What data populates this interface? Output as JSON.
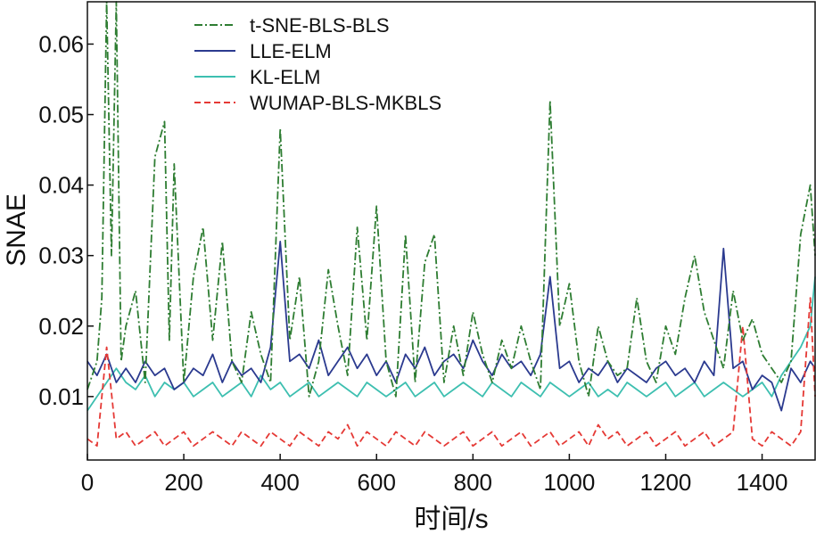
{
  "chart_data": {
    "type": "line",
    "xlabel": "时间/s",
    "ylabel": "SNAE",
    "xlim": [
      0,
      1510
    ],
    "ylim": [
      0.001,
      0.066
    ],
    "xticks": [
      0,
      200,
      400,
      600,
      800,
      1000,
      1200,
      1400
    ],
    "yticks": [
      0.01,
      0.02,
      0.03,
      0.04,
      0.05,
      0.06
    ],
    "ytick_labels": [
      "0.01",
      "0.02",
      "0.03",
      "0.04",
      "0.05",
      "0.06"
    ],
    "grid": false,
    "legend_position": "top-left",
    "series": [
      {
        "name": "t-SNE-BLS-BLS",
        "color": "#2e7d32",
        "dash": "dashdot",
        "x": [
          0,
          20,
          30,
          40,
          50,
          60,
          70,
          80,
          100,
          120,
          140,
          160,
          170,
          180,
          200,
          220,
          240,
          260,
          280,
          300,
          320,
          340,
          360,
          380,
          400,
          420,
          440,
          460,
          480,
          500,
          520,
          540,
          560,
          580,
          600,
          620,
          640,
          660,
          680,
          700,
          720,
          740,
          760,
          780,
          800,
          820,
          840,
          860,
          880,
          900,
          920,
          940,
          960,
          980,
          1000,
          1020,
          1040,
          1060,
          1080,
          1100,
          1120,
          1140,
          1160,
          1180,
          1200,
          1220,
          1240,
          1260,
          1280,
          1300,
          1320,
          1340,
          1360,
          1380,
          1400,
          1420,
          1440,
          1460,
          1480,
          1500,
          1510
        ],
        "y": [
          0.011,
          0.015,
          0.024,
          0.066,
          0.03,
          0.066,
          0.015,
          0.02,
          0.025,
          0.012,
          0.044,
          0.049,
          0.018,
          0.043,
          0.012,
          0.027,
          0.034,
          0.018,
          0.032,
          0.015,
          0.012,
          0.022,
          0.016,
          0.012,
          0.048,
          0.018,
          0.027,
          0.01,
          0.015,
          0.028,
          0.02,
          0.013,
          0.034,
          0.018,
          0.037,
          0.015,
          0.01,
          0.033,
          0.012,
          0.029,
          0.033,
          0.012,
          0.02,
          0.013,
          0.022,
          0.016,
          0.012,
          0.018,
          0.014,
          0.02,
          0.015,
          0.011,
          0.052,
          0.02,
          0.026,
          0.015,
          0.01,
          0.02,
          0.015,
          0.013,
          0.014,
          0.024,
          0.015,
          0.012,
          0.02,
          0.016,
          0.024,
          0.03,
          0.022,
          0.018,
          0.014,
          0.025,
          0.018,
          0.021,
          0.016,
          0.014,
          0.012,
          0.015,
          0.033,
          0.04,
          0.03
        ]
      },
      {
        "name": "LLE-ELM",
        "color": "#2b3a8f",
        "dash": "solid",
        "x": [
          0,
          20,
          40,
          60,
          80,
          100,
          120,
          140,
          160,
          180,
          200,
          220,
          240,
          260,
          280,
          300,
          320,
          340,
          360,
          380,
          400,
          420,
          440,
          460,
          480,
          500,
          520,
          540,
          560,
          580,
          600,
          620,
          640,
          660,
          680,
          700,
          720,
          740,
          760,
          780,
          800,
          820,
          840,
          860,
          880,
          900,
          920,
          940,
          960,
          980,
          1000,
          1020,
          1040,
          1060,
          1080,
          1100,
          1120,
          1140,
          1160,
          1180,
          1200,
          1220,
          1240,
          1260,
          1280,
          1300,
          1320,
          1340,
          1360,
          1380,
          1400,
          1420,
          1440,
          1460,
          1480,
          1500,
          1510
        ],
        "y": [
          0.015,
          0.013,
          0.016,
          0.012,
          0.014,
          0.012,
          0.015,
          0.013,
          0.014,
          0.011,
          0.012,
          0.014,
          0.013,
          0.016,
          0.012,
          0.015,
          0.013,
          0.014,
          0.012,
          0.017,
          0.032,
          0.015,
          0.016,
          0.014,
          0.018,
          0.013,
          0.015,
          0.017,
          0.014,
          0.016,
          0.013,
          0.015,
          0.012,
          0.016,
          0.014,
          0.017,
          0.013,
          0.015,
          0.016,
          0.014,
          0.018,
          0.015,
          0.013,
          0.016,
          0.014,
          0.015,
          0.013,
          0.016,
          0.027,
          0.014,
          0.015,
          0.012,
          0.014,
          0.013,
          0.015,
          0.012,
          0.014,
          0.013,
          0.012,
          0.014,
          0.015,
          0.013,
          0.014,
          0.012,
          0.015,
          0.013,
          0.031,
          0.014,
          0.015,
          0.011,
          0.013,
          0.012,
          0.008,
          0.014,
          0.012,
          0.015,
          0.014
        ]
      },
      {
        "name": "KL-ELM",
        "color": "#3dbfb0",
        "dash": "solid",
        "x": [
          0,
          20,
          40,
          60,
          80,
          100,
          120,
          140,
          160,
          180,
          200,
          220,
          240,
          260,
          280,
          300,
          320,
          340,
          360,
          380,
          400,
          420,
          440,
          460,
          480,
          500,
          520,
          540,
          560,
          580,
          600,
          620,
          640,
          660,
          680,
          700,
          720,
          740,
          760,
          780,
          800,
          820,
          840,
          860,
          880,
          900,
          920,
          940,
          960,
          980,
          1000,
          1020,
          1040,
          1060,
          1080,
          1100,
          1120,
          1140,
          1160,
          1180,
          1200,
          1220,
          1240,
          1260,
          1280,
          1300,
          1320,
          1340,
          1360,
          1380,
          1400,
          1420,
          1440,
          1460,
          1480,
          1500,
          1510
        ],
        "y": [
          0.008,
          0.01,
          0.012,
          0.014,
          0.012,
          0.011,
          0.013,
          0.01,
          0.012,
          0.011,
          0.012,
          0.01,
          0.011,
          0.012,
          0.01,
          0.011,
          0.012,
          0.01,
          0.013,
          0.011,
          0.012,
          0.01,
          0.011,
          0.012,
          0.01,
          0.011,
          0.012,
          0.011,
          0.01,
          0.012,
          0.011,
          0.01,
          0.011,
          0.012,
          0.01,
          0.011,
          0.012,
          0.01,
          0.011,
          0.012,
          0.011,
          0.01,
          0.012,
          0.011,
          0.01,
          0.012,
          0.011,
          0.01,
          0.012,
          0.011,
          0.01,
          0.011,
          0.012,
          0.01,
          0.011,
          0.01,
          0.012,
          0.011,
          0.01,
          0.011,
          0.012,
          0.01,
          0.011,
          0.012,
          0.01,
          0.011,
          0.012,
          0.011,
          0.01,
          0.011,
          0.012,
          0.01,
          0.013,
          0.015,
          0.017,
          0.02,
          0.027
        ]
      },
      {
        "name": "WUMAP-BLS-MKBLS",
        "color": "#e53935",
        "dash": "dashed",
        "x": [
          0,
          20,
          40,
          60,
          80,
          100,
          120,
          140,
          160,
          180,
          200,
          220,
          240,
          260,
          280,
          300,
          320,
          340,
          360,
          380,
          400,
          420,
          440,
          460,
          480,
          500,
          520,
          540,
          560,
          580,
          600,
          620,
          640,
          660,
          680,
          700,
          720,
          740,
          760,
          780,
          800,
          820,
          840,
          860,
          880,
          900,
          920,
          940,
          960,
          980,
          1000,
          1020,
          1040,
          1060,
          1080,
          1100,
          1120,
          1140,
          1160,
          1180,
          1200,
          1220,
          1240,
          1260,
          1280,
          1300,
          1320,
          1340,
          1360,
          1380,
          1400,
          1420,
          1440,
          1460,
          1480,
          1500,
          1510
        ],
        "y": [
          0.004,
          0.003,
          0.017,
          0.004,
          0.005,
          0.003,
          0.004,
          0.005,
          0.003,
          0.004,
          0.005,
          0.003,
          0.004,
          0.005,
          0.004,
          0.003,
          0.005,
          0.004,
          0.003,
          0.005,
          0.004,
          0.003,
          0.005,
          0.004,
          0.003,
          0.005,
          0.004,
          0.006,
          0.003,
          0.005,
          0.004,
          0.003,
          0.005,
          0.004,
          0.003,
          0.005,
          0.004,
          0.003,
          0.004,
          0.005,
          0.003,
          0.004,
          0.005,
          0.003,
          0.004,
          0.005,
          0.003,
          0.004,
          0.005,
          0.003,
          0.004,
          0.005,
          0.003,
          0.006,
          0.004,
          0.005,
          0.003,
          0.004,
          0.005,
          0.003,
          0.004,
          0.005,
          0.003,
          0.004,
          0.005,
          0.003,
          0.004,
          0.005,
          0.02,
          0.004,
          0.003,
          0.005,
          0.004,
          0.003,
          0.005,
          0.024,
          0.01
        ]
      }
    ]
  }
}
